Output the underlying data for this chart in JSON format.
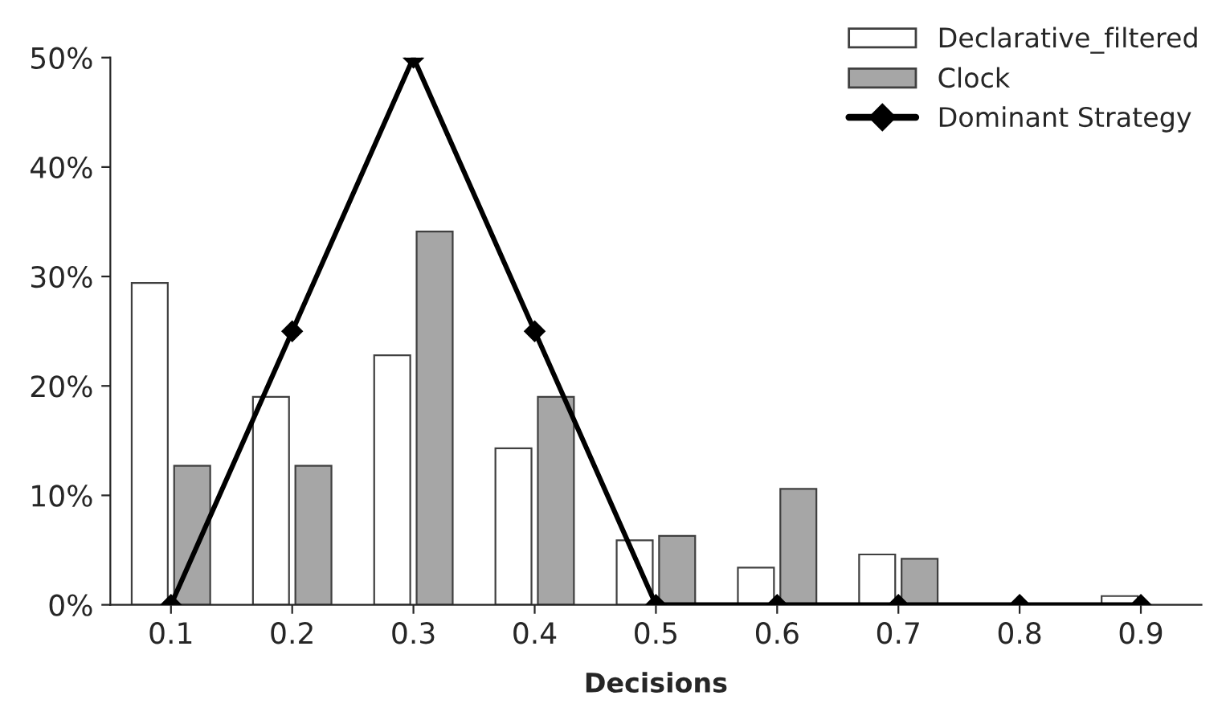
{
  "chart_data": {
    "type": "bar",
    "xlabel": "Decisions",
    "categories": [
      "0.1",
      "0.2",
      "0.3",
      "0.4",
      "0.5",
      "0.6",
      "0.7",
      "0.8",
      "0.9"
    ],
    "series": [
      {
        "name": "Declarative_filtered",
        "color": "#ffffff",
        "values": [
          29.4,
          19.0,
          22.8,
          14.3,
          5.9,
          3.4,
          4.6,
          0,
          0.8
        ]
      },
      {
        "name": "Clock",
        "color": "#a6a6a6",
        "values": [
          12.7,
          12.7,
          34.1,
          19.0,
          6.3,
          10.6,
          4.2,
          0,
          0
        ]
      },
      {
        "name": "Dominant Strategy",
        "type": "line",
        "color": "#000000",
        "marker": "diamond",
        "values": [
          0,
          25,
          50,
          25,
          0,
          0,
          0,
          0,
          0
        ]
      }
    ],
    "ylim": [
      0,
      50
    ],
    "yticks": [
      {
        "value": 0,
        "label": "0%"
      },
      {
        "value": 10,
        "label": "10%"
      },
      {
        "value": 20,
        "label": "20%"
      },
      {
        "value": 30,
        "label": "30%"
      },
      {
        "value": 40,
        "label": "40%"
      },
      {
        "value": 50,
        "label": "50%"
      }
    ],
    "grid": false,
    "legend": "top right"
  }
}
